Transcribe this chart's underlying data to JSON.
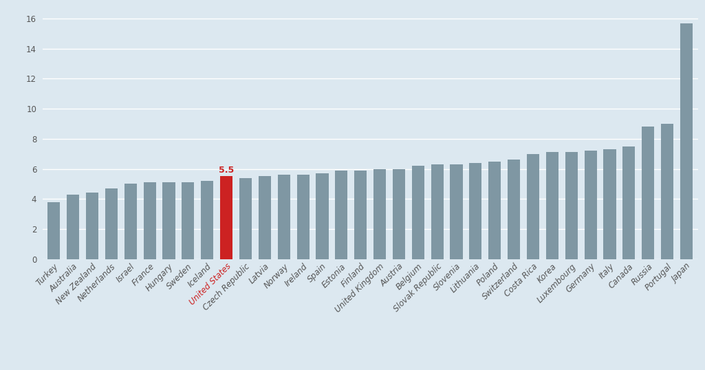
{
  "countries": [
    "Turkey",
    "Australia",
    "New Zealand",
    "Netherlands",
    "Israel",
    "France",
    "Hungary",
    "Sweden",
    "Iceland",
    "United States",
    "Czech Republic",
    "Latvia",
    "Norway",
    "Ireland",
    "Spain",
    "Estonia",
    "Finland",
    "United Kingdom",
    "Austria",
    "Belgium",
    "Slovak Republic",
    "Slovenia",
    "Lithuania",
    "Poland",
    "Switzerland",
    "Costa Rica",
    "Korea",
    "Luxembourg",
    "Germany",
    "Italy",
    "Canada",
    "Russia",
    "Portugal",
    "Japan"
  ],
  "values": [
    3.8,
    4.3,
    4.4,
    4.7,
    5.0,
    5.1,
    5.1,
    5.1,
    5.2,
    5.5,
    5.4,
    5.5,
    5.6,
    5.6,
    5.7,
    5.9,
    5.9,
    6.0,
    6.0,
    6.2,
    6.3,
    6.3,
    6.4,
    6.5,
    6.6,
    7.0,
    7.1,
    7.1,
    7.2,
    7.3,
    7.5,
    8.8,
    9.0,
    15.7
  ],
  "highlight_index": 9,
  "highlight_value_label": "5.5",
  "bar_color": "#7f97a3",
  "highlight_color": "#cc2222",
  "bg_color": "#dce8f0",
  "lower_bg_color": "#ccdce8",
  "grid_color": "#ffffff",
  "yticks": [
    0,
    2,
    4,
    6,
    8,
    10,
    12,
    14,
    16
  ],
  "ylim": [
    0,
    16.5
  ],
  "tick_fontsize": 8.5,
  "highlight_label_fontsize": 9,
  "bar_width": 0.65
}
